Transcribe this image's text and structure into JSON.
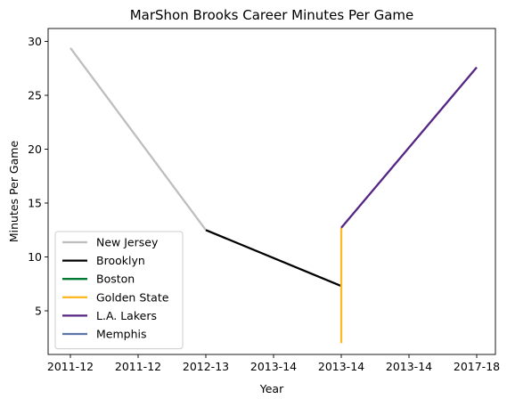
{
  "chart_data": {
    "type": "line",
    "title": "MarShon Brooks Career Minutes Per Game",
    "xlabel": "Year",
    "ylabel": "Minutes Per Game",
    "x_tick_labels": [
      "2011-12",
      "2011-12",
      "2012-13",
      "2013-14",
      "2013-14",
      "2013-14",
      "2017-18"
    ],
    "ylim": [
      0.95,
      31.2
    ],
    "y_ticks": [
      5,
      10,
      15,
      20,
      25,
      30
    ],
    "grid": false,
    "legend_position": "lower-left",
    "series": [
      {
        "name": "New Jersey",
        "color": "#BEBEBE",
        "points": [
          [
            0,
            29.4
          ],
          [
            2,
            12.5
          ]
        ]
      },
      {
        "name": "Brooklyn",
        "color": "#000000",
        "points": [
          [
            2,
            12.5
          ],
          [
            4,
            7.3
          ]
        ]
      },
      {
        "name": "Boston",
        "color": "#007A33",
        "points": []
      },
      {
        "name": "Golden State",
        "color": "#FDB927",
        "points": [
          [
            4,
            2.0
          ],
          [
            4,
            12.7
          ]
        ]
      },
      {
        "name": "L.A. Lakers",
        "color": "#552583",
        "points": [
          [
            4,
            12.7
          ],
          [
            6,
            27.6
          ]
        ]
      },
      {
        "name": "Memphis",
        "color": "#5D76A9",
        "points": []
      }
    ]
  }
}
